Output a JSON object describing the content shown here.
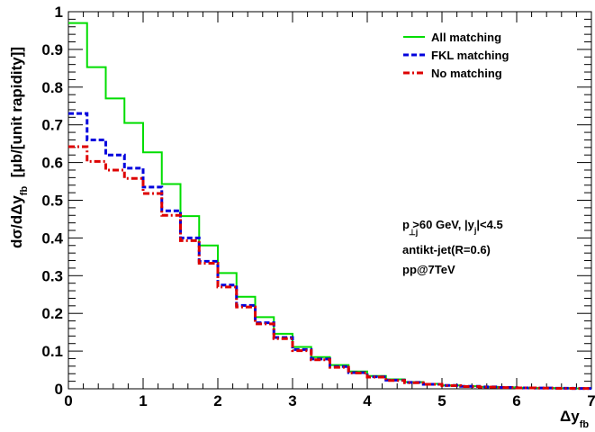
{
  "chart_data": {
    "type": "line",
    "step": true,
    "x_edges": [
      0,
      0.25,
      0.5,
      0.75,
      1.0,
      1.25,
      1.5,
      1.75,
      2.0,
      2.25,
      2.5,
      2.75,
      3.0,
      3.25,
      3.5,
      3.75,
      4.0,
      4.25,
      4.5,
      4.75,
      5.0,
      5.25,
      5.5,
      5.75,
      6.0,
      6.25,
      6.5,
      6.75,
      7.0
    ],
    "series": [
      {
        "name": "All matching",
        "color": "#00dd00",
        "dash": "solid",
        "values": [
          0.97,
          0.853,
          0.77,
          0.705,
          0.627,
          0.543,
          0.458,
          0.38,
          0.307,
          0.244,
          0.19,
          0.146,
          0.111,
          0.084,
          0.063,
          0.046,
          0.034,
          0.025,
          0.018,
          0.013,
          0.009,
          0.007,
          0.005,
          0.004,
          0.003,
          0.002,
          0.0015,
          0.001
        ]
      },
      {
        "name": "FKL matching",
        "color": "#0000dd",
        "dash": "dashed",
        "values": [
          0.73,
          0.66,
          0.62,
          0.585,
          0.535,
          0.472,
          0.4,
          0.338,
          0.275,
          0.221,
          0.175,
          0.136,
          0.104,
          0.079,
          0.059,
          0.043,
          0.032,
          0.023,
          0.017,
          0.012,
          0.009,
          0.0065,
          0.005,
          0.0035,
          0.0025,
          0.002,
          0.0015,
          0.001
        ]
      },
      {
        "name": "No matching",
        "color": "#dd0000",
        "dash": "dashdot",
        "values": [
          0.642,
          0.603,
          0.58,
          0.558,
          0.518,
          0.46,
          0.393,
          0.333,
          0.27,
          0.217,
          0.172,
          0.133,
          0.101,
          0.077,
          0.057,
          0.042,
          0.031,
          0.022,
          0.016,
          0.012,
          0.0085,
          0.006,
          0.0045,
          0.0033,
          0.0024,
          0.0018,
          0.0013,
          0.001
        ]
      }
    ],
    "xlim": [
      0,
      7
    ],
    "ylim": [
      0,
      1
    ],
    "xticks": [
      "0",
      "1",
      "2",
      "3",
      "4",
      "5",
      "6",
      "7"
    ],
    "yticks": [
      "0",
      "0.1",
      "0.2",
      "0.3",
      "0.4",
      "0.5",
      "0.6",
      "0.7",
      "0.8",
      "0.9",
      "1"
    ],
    "xlabel": {
      "main": "Δy",
      "sub": "fb"
    },
    "ylabel": {
      "pre": "dσ/dΔy",
      "sub": "fb",
      "post": "  [μb/[unit rapidity]]"
    },
    "annotations": {
      "line1": {
        "p": "p",
        "sub": "⊥j",
        "rest": ">60 GeV, |y",
        "sub2": "j",
        "end": "|<4.5"
      },
      "line2": "antikt-jet(R=0.6)",
      "line3": "pp@7TeV"
    },
    "legend_position": "top-right",
    "grid": false
  }
}
